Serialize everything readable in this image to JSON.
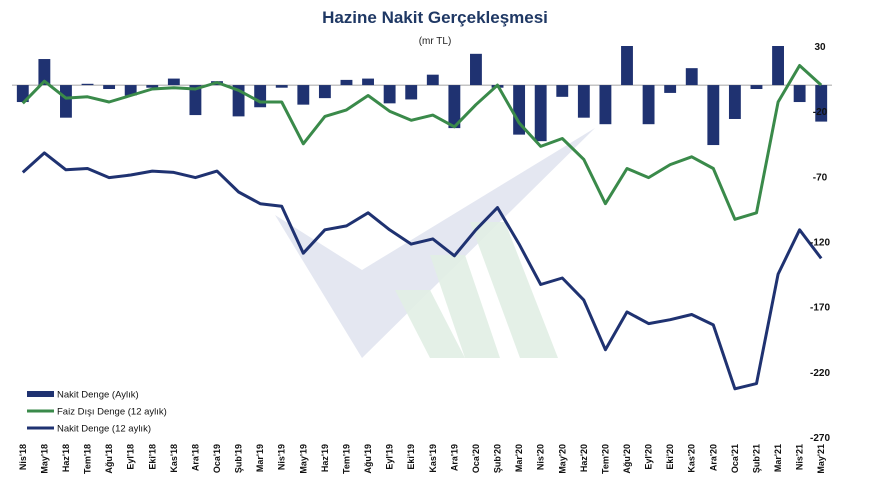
{
  "chart_data": {
    "type": "bar",
    "title": "Hazine Nakit Gerçekleşmesi",
    "subtitle": "(mr TL)",
    "ylim": [
      -270,
      30
    ],
    "yticks": [
      30,
      -20,
      -70,
      -120,
      -170,
      -220,
      -270
    ],
    "grid": false,
    "legend_position": "bottom-left",
    "colors": {
      "bars": "#1f3271",
      "faiz_disi": "#3a8a4a",
      "nakit_12": "#1f3271",
      "title": "#1f3864"
    },
    "categories": [
      "Nis'18",
      "May'18",
      "Haz'18",
      "Tem'18",
      "Ağu'18",
      "Eyl'18",
      "Eki'18",
      "Kas'18",
      "Ara'18",
      "Oca'19",
      "Şub'19",
      "Mar'19",
      "Nis'19",
      "May'19",
      "Haz'19",
      "Tem'19",
      "Ağu'19",
      "Eyl'19",
      "Eki'19",
      "Kas'19",
      "Ara'19",
      "Oca'20",
      "Şub'20",
      "Mar'20",
      "Nis'20",
      "May'20",
      "Haz'20",
      "Tem'20",
      "Ağu'20",
      "Eyl'20",
      "Eki'20",
      "Kas'20",
      "Ara'20",
      "Oca'21",
      "Şub'21",
      "Mar'21",
      "Nis'21",
      "May'21"
    ],
    "series": [
      {
        "name": "Nakit Denge (Aylık)",
        "type": "bar",
        "values": [
          -13,
          20,
          -25,
          1,
          -3,
          -8,
          -2,
          5,
          -23,
          3,
          -24,
          -17,
          -2,
          -15,
          -10,
          4,
          5,
          -14,
          -11,
          8,
          -33,
          24,
          -2,
          -38,
          -43,
          -9,
          -25,
          -30,
          30,
          -30,
          -6,
          13,
          -46,
          -26,
          -3,
          30,
          -13,
          -28
        ]
      },
      {
        "name": "Faiz Dışı Denge (12 aylık)",
        "type": "line",
        "values": [
          -14,
          3,
          -10,
          -9,
          -13,
          -8,
          -3,
          -2,
          -3,
          2,
          -4,
          -13,
          -13,
          -45,
          -24,
          -19,
          -8,
          -20,
          -27,
          -23,
          -32,
          -15,
          0,
          -29,
          -47,
          -41,
          -57,
          -91,
          -64,
          -71,
          -61,
          -55,
          -64,
          -103,
          -98,
          -13,
          15,
          0
        ]
      },
      {
        "name": "Nakit Denge (12 aylık)",
        "type": "line",
        "values": [
          -67,
          -52,
          -65,
          -64,
          -71,
          -69,
          -66,
          -67,
          -71,
          -66,
          -82,
          -91,
          -93,
          -129,
          -111,
          -108,
          -98,
          -111,
          -122,
          -118,
          -131,
          -111,
          -94,
          -122,
          -153,
          -148,
          -165,
          -203,
          -174,
          -183,
          -180,
          -176,
          -184,
          -233,
          -229,
          -145,
          -111,
          -133
        ]
      }
    ]
  }
}
